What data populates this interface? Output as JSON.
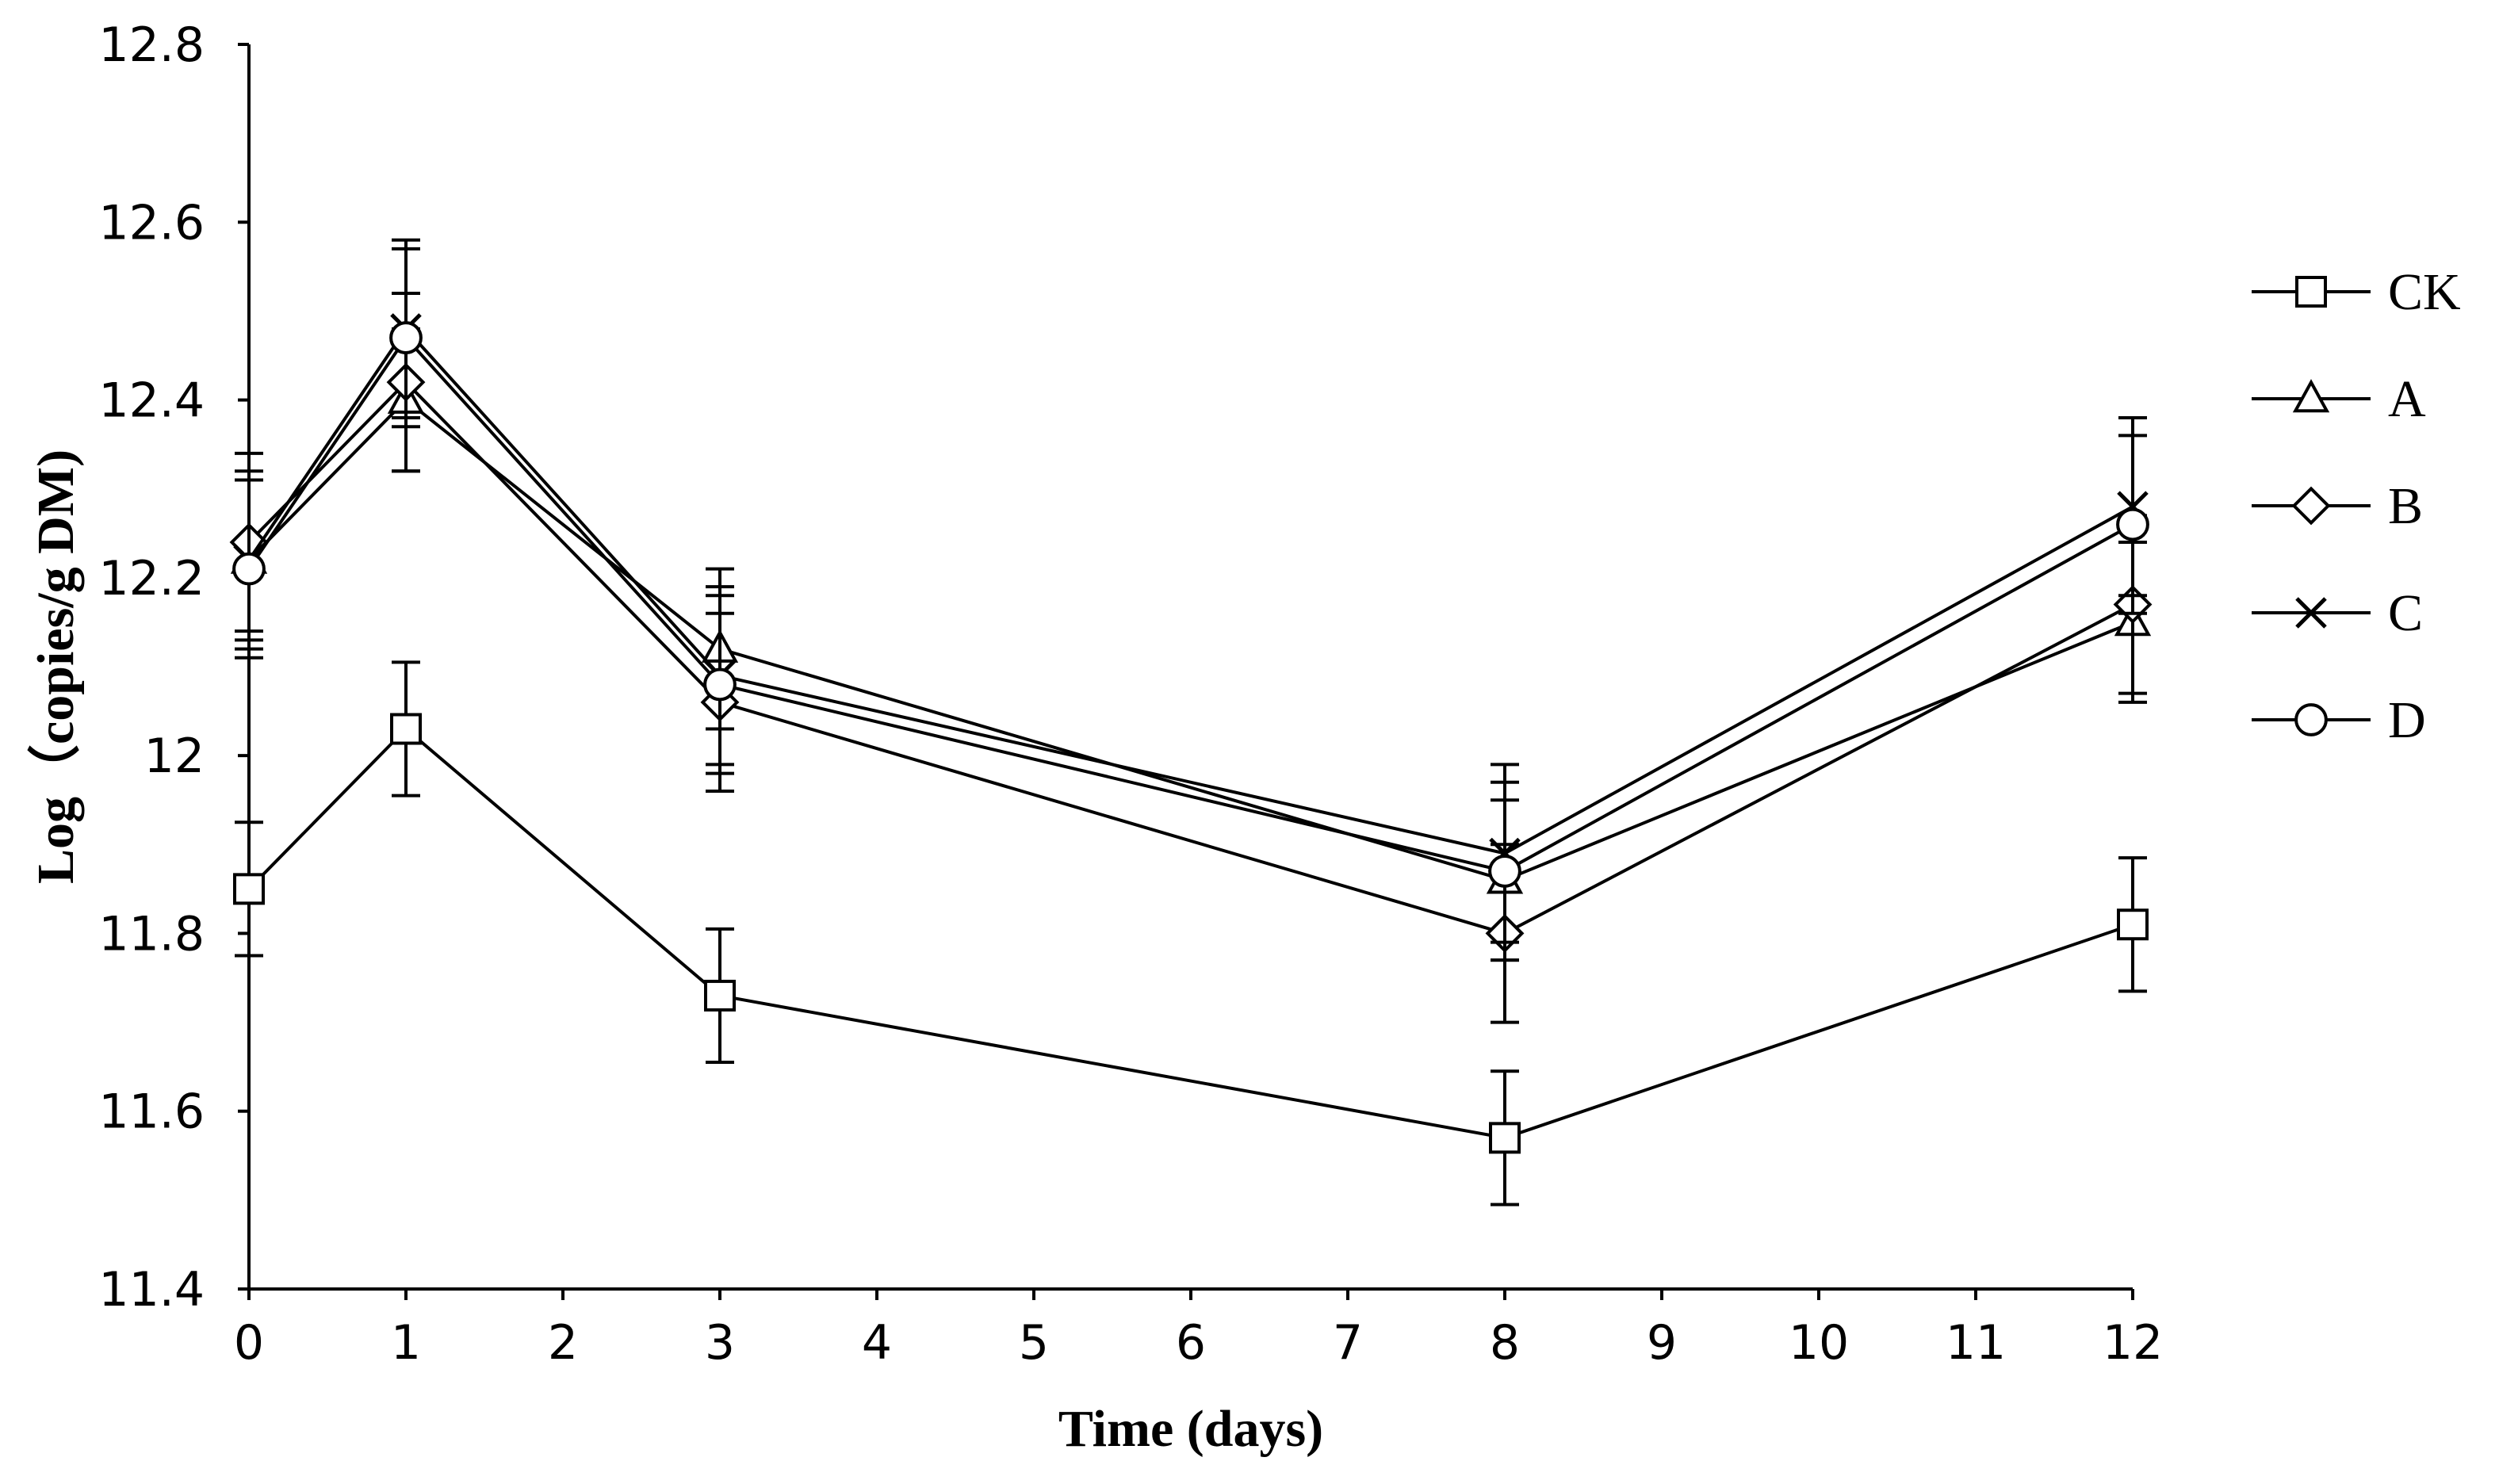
{
  "chart_data": {
    "type": "line",
    "title": "",
    "xlabel": "Time (days)",
    "ylabel": "Log（copies/g DM)",
    "xlim": [
      0,
      12
    ],
    "ylim": [
      11.4,
      12.8
    ],
    "x_ticks": [
      "0",
      "1",
      "2",
      "3",
      "4",
      "5",
      "6",
      "7",
      "8",
      "9",
      "10",
      "11",
      "12"
    ],
    "y_ticks": [
      "11.4",
      "11.6",
      "11.8",
      "12",
      "12.2",
      "12.4",
      "12.6",
      "12.8"
    ],
    "x": [
      0,
      1,
      3,
      8,
      12
    ],
    "series": [
      {
        "name": "CK",
        "marker": "square",
        "values": [
          11.85,
          12.03,
          11.73,
          11.57,
          11.81
        ],
        "errors": [
          0.075,
          0.075,
          0.075,
          0.075,
          0.075
        ]
      },
      {
        "name": "A",
        "marker": "triangle",
        "values": [
          12.22,
          12.4,
          12.12,
          11.86,
          12.15
        ],
        "errors": [
          0.09,
          0.08,
          0.09,
          0.09,
          0.09
        ]
      },
      {
        "name": "B",
        "marker": "diamond",
        "values": [
          12.24,
          12.42,
          12.06,
          11.8,
          12.17
        ],
        "errors": [
          0.1,
          0.1,
          0.1,
          0.1,
          0.1
        ]
      },
      {
        "name": "C",
        "marker": "x",
        "values": [
          12.22,
          12.48,
          12.09,
          11.89,
          12.28
        ],
        "errors": [
          0.1,
          0.1,
          0.1,
          0.1,
          0.1
        ]
      },
      {
        "name": "D",
        "marker": "circle",
        "values": [
          12.21,
          12.47,
          12.08,
          11.87,
          12.26
        ],
        "errors": [
          0.1,
          0.1,
          0.1,
          0.1,
          0.1
        ]
      }
    ],
    "grid": false,
    "legend_position": "right"
  }
}
